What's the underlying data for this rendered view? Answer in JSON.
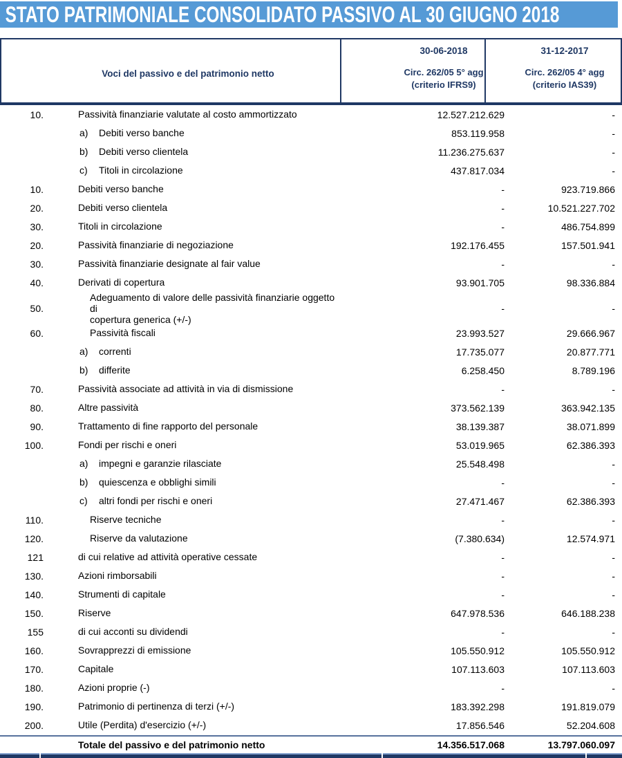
{
  "title": "STATO PATRIMONIALE CONSOLIDATO PASSIVO AL 30 GIUGNO 2018",
  "colors": {
    "title_bar_background": "#569AD6",
    "title_text": "#FFFFFF",
    "header_navy": "#1F3864",
    "body_text": "#000000"
  },
  "table": {
    "header": {
      "voci": "Voci del passivo e del patrimonio netto",
      "col1": {
        "date": "30-06-2018",
        "circ": "Circ. 262/05 5° agg\n(criterio IFRS9)"
      },
      "col2": {
        "date": "31-12-2017",
        "circ": "Circ. 262/05 4° agg\n(criterio IAS39)"
      }
    },
    "rows": [
      {
        "num": "10.",
        "label": "Passività finanziarie valutate al costo ammortizzato",
        "indent": 0,
        "v1": "12.527.212.629",
        "v2": "-"
      },
      {
        "letter": "a)",
        "label": "Debiti verso banche",
        "v1": "853.119.958",
        "v2": "-"
      },
      {
        "letter": "b)",
        "label": "Debiti verso clientela",
        "v1": "11.236.275.637",
        "v2": "-"
      },
      {
        "letter": "c)",
        "label": "Titoli in circolazione",
        "v1": "437.817.034",
        "v2": "-"
      },
      {
        "num": "10.",
        "label": "Debiti verso banche",
        "indent": 0,
        "v1": "-",
        "v2": "923.719.866"
      },
      {
        "num": "20.",
        "label": "Debiti verso clientela",
        "indent": 0,
        "v1": "-",
        "v2": "10.521.227.702"
      },
      {
        "num": "30.",
        "label": "Titoli in circolazione",
        "indent": 0,
        "v1": "-",
        "v2": "486.754.899"
      },
      {
        "num": "20.",
        "label": "Passività finanziarie di negoziazione",
        "indent": 0,
        "v1": "192.176.455",
        "v2": "157.501.941"
      },
      {
        "num": "30.",
        "label": "Passività finanziarie designate al fair value",
        "indent": 0,
        "v1": "-",
        "v2": "-"
      },
      {
        "num": "40.",
        "label": "Derivati di copertura",
        "indent": 0,
        "v1": "93.901.705",
        "v2": "98.336.884"
      },
      {
        "num": "50.",
        "label": "Adeguamento di valore delle passività finanziarie oggetto di\ncopertura generica (+/-)",
        "indent": 1,
        "twoline": true,
        "v1": "-",
        "v2": "-"
      },
      {
        "num": "60.",
        "label": "Passività fiscali",
        "indent": 1,
        "v1": "23.993.527",
        "v2": "29.666.967"
      },
      {
        "letter": "a)",
        "label": "correnti",
        "v1": "17.735.077",
        "v2": "20.877.771"
      },
      {
        "letter": "b)",
        "label": "differite",
        "v1": "6.258.450",
        "v2": "8.789.196"
      },
      {
        "num": "70.",
        "label": "Passività associate ad attività in via di dismissione",
        "indent": 0,
        "v1": "-",
        "v2": "-"
      },
      {
        "num": "80.",
        "label": "Altre passività",
        "indent": 0,
        "v1": "373.562.139",
        "v2": "363.942.135"
      },
      {
        "num": "90.",
        "label": "Trattamento di fine rapporto del personale",
        "indent": 0,
        "v1": "38.139.387",
        "v2": "38.071.899"
      },
      {
        "num": "100.",
        "label": "Fondi per rischi e oneri",
        "indent": 0,
        "v1": "53.019.965",
        "v2": "62.386.393"
      },
      {
        "letter": "a)",
        "label": "impegni e garanzie rilasciate",
        "v1": "25.548.498",
        "v2": "-"
      },
      {
        "letter": "b)",
        "label": "quiescenza e obblighi simili",
        "v1": "-",
        "v2": "-"
      },
      {
        "letter": "c)",
        "label": "altri fondi per rischi e oneri",
        "v1": "27.471.467",
        "v2": "62.386.393"
      },
      {
        "num": "110.",
        "label": "Riserve tecniche",
        "indent": 1,
        "v1": "-",
        "v2": "-"
      },
      {
        "num": "120.",
        "label": "Riserve da valutazione",
        "indent": 1,
        "v1": "(7.380.634)",
        "v2": "12.574.971"
      },
      {
        "num": "121",
        "label": "di cui relative ad attività operative cessate",
        "indent": 0,
        "v1": "-",
        "v2": "-"
      },
      {
        "num": "130.",
        "label": "Azioni rimborsabili",
        "indent": 0,
        "v1": "-",
        "v2": "-"
      },
      {
        "num": "140.",
        "label": "Strumenti di capitale",
        "indent": 0,
        "v1": "-",
        "v2": "-"
      },
      {
        "num": "150.",
        "label": "Riserve",
        "indent": 0,
        "v1": "647.978.536",
        "v2": "646.188.238"
      },
      {
        "num": "155",
        "label": "di cui acconti su dividendi",
        "indent": 0,
        "v1": "-",
        "v2": "-"
      },
      {
        "num": "160.",
        "label": "Sovrapprezzi di emissione",
        "indent": 0,
        "v1": "105.550.912",
        "v2": "105.550.912"
      },
      {
        "num": "170.",
        "label": "Capitale",
        "indent": 0,
        "v1": "107.113.603",
        "v2": "107.113.603"
      },
      {
        "num": "180.",
        "label": "Azioni proprie (-)",
        "indent": 0,
        "v1": "-",
        "v2": "-"
      },
      {
        "num": "190.",
        "label": "Patrimonio di pertinenza di terzi (+/-)",
        "indent": 0,
        "v1": "183.392.298",
        "v2": "191.819.079"
      },
      {
        "num": "200.",
        "label": "Utile (Perdita) d'esercizio (+/-)",
        "indent": 0,
        "v1": "17.856.546",
        "v2": "52.204.608"
      }
    ],
    "total": {
      "label": "Totale del passivo e del patrimonio netto",
      "v1": "14.356.517.068",
      "v2": "13.797.060.097"
    }
  }
}
